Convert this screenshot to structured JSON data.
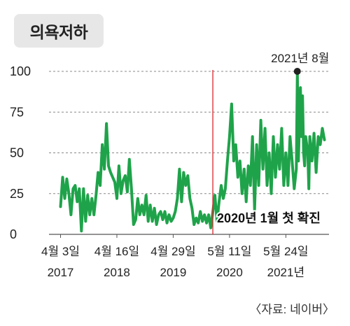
{
  "title": "의욕저하",
  "source": "〈자료: 네이버〉",
  "chart_data": {
    "type": "line",
    "title": "의욕저하",
    "x_start": "2017-04-03",
    "x_end": "2021-10-25",
    "ylim": [
      0,
      100
    ],
    "yticks": [
      "0",
      "25",
      "50",
      "75",
      "100"
    ],
    "grid": "horizontal dashed",
    "xticks": [
      {
        "date": "2017-04-03",
        "line1": "4월 3일",
        "line2": "2017"
      },
      {
        "date": "2018-04-16",
        "line1": "4월 16일",
        "line2": "2018"
      },
      {
        "date": "2019-04-29",
        "line1": "4월 29일",
        "line2": "2019"
      },
      {
        "date": "2020-05-11",
        "line1": "5월 11일",
        "line2": "2020"
      },
      {
        "date": "2021-05-24",
        "line1": "5월 24일",
        "line2": "2021년"
      }
    ],
    "event_line": {
      "date": "2020-01-20",
      "label": "2020년 1월 첫 확진",
      "color": "#d9262c"
    },
    "peak": {
      "date": "2021-08-09",
      "value": 100,
      "label": "2021년 8월"
    },
    "series_color": "#1fa34a",
    "series": [
      {
        "points": [
          [
            "2017-04-03",
            17
          ],
          [
            "2017-04-17",
            35
          ],
          [
            "2017-05-01",
            22
          ],
          [
            "2017-05-15",
            34
          ],
          [
            "2017-05-29",
            25
          ],
          [
            "2017-06-12",
            12
          ],
          [
            "2017-06-26",
            28
          ],
          [
            "2017-07-10",
            30
          ],
          [
            "2017-07-24",
            20
          ],
          [
            "2017-08-07",
            28
          ],
          [
            "2017-08-21",
            2
          ],
          [
            "2017-09-04",
            28
          ],
          [
            "2017-09-18",
            8
          ],
          [
            "2017-10-02",
            24
          ],
          [
            "2017-10-16",
            12
          ],
          [
            "2017-10-30",
            22
          ],
          [
            "2017-11-13",
            12
          ],
          [
            "2017-11-27",
            24
          ],
          [
            "2017-12-11",
            38
          ],
          [
            "2017-12-25",
            30
          ],
          [
            "2018-01-08",
            55
          ],
          [
            "2018-01-22",
            40
          ],
          [
            "2018-02-05",
            68
          ],
          [
            "2018-02-19",
            42
          ],
          [
            "2018-03-05",
            38
          ],
          [
            "2018-03-19",
            35
          ],
          [
            "2018-04-02",
            32
          ],
          [
            "2018-04-16",
            22
          ],
          [
            "2018-04-30",
            42
          ],
          [
            "2018-05-14",
            25
          ],
          [
            "2018-05-28",
            33
          ],
          [
            "2018-06-11",
            36
          ],
          [
            "2018-06-25",
            26
          ],
          [
            "2018-07-09",
            46
          ],
          [
            "2018-07-23",
            28
          ],
          [
            "2018-08-06",
            6
          ],
          [
            "2018-08-20",
            9
          ],
          [
            "2018-09-03",
            22
          ],
          [
            "2018-09-17",
            12
          ],
          [
            "2018-10-01",
            18
          ],
          [
            "2018-10-15",
            12
          ],
          [
            "2018-10-29",
            24
          ],
          [
            "2018-11-12",
            8
          ],
          [
            "2018-11-26",
            18
          ],
          [
            "2018-12-10",
            8
          ],
          [
            "2018-12-24",
            16
          ],
          [
            "2019-01-07",
            6
          ],
          [
            "2019-01-21",
            12
          ],
          [
            "2019-02-04",
            14
          ],
          [
            "2019-02-18",
            9
          ],
          [
            "2019-03-04",
            14
          ],
          [
            "2019-03-18",
            7
          ],
          [
            "2019-04-01",
            12
          ],
          [
            "2019-04-15",
            8
          ],
          [
            "2019-04-29",
            10
          ],
          [
            "2019-05-13",
            14
          ],
          [
            "2019-05-27",
            22
          ],
          [
            "2019-06-10",
            40
          ],
          [
            "2019-06-24",
            20
          ],
          [
            "2019-07-08",
            38
          ],
          [
            "2019-07-22",
            30
          ],
          [
            "2019-08-05",
            36
          ],
          [
            "2019-08-19",
            22
          ],
          [
            "2019-09-02",
            16
          ],
          [
            "2019-09-16",
            6
          ],
          [
            "2019-09-30",
            10
          ],
          [
            "2019-10-14",
            7
          ],
          [
            "2019-10-28",
            14
          ],
          [
            "2019-11-11",
            8
          ],
          [
            "2019-11-25",
            12
          ],
          [
            "2019-12-09",
            7
          ],
          [
            "2019-12-23",
            12
          ],
          [
            "2020-01-06",
            4
          ],
          [
            "2020-01-20",
            14
          ],
          [
            "2020-02-03",
            24
          ],
          [
            "2020-02-17",
            8
          ],
          [
            "2020-03-02",
            20
          ],
          [
            "2020-03-16",
            30
          ],
          [
            "2020-03-30",
            22
          ],
          [
            "2020-04-13",
            28
          ],
          [
            "2020-04-27",
            45
          ],
          [
            "2020-05-11",
            60
          ],
          [
            "2020-05-25",
            80
          ],
          [
            "2020-06-08",
            45
          ],
          [
            "2020-06-22",
            55
          ],
          [
            "2020-07-06",
            35
          ],
          [
            "2020-07-20",
            45
          ],
          [
            "2020-08-03",
            25
          ],
          [
            "2020-08-17",
            40
          ],
          [
            "2020-08-31",
            20
          ],
          [
            "2020-09-14",
            42
          ],
          [
            "2020-09-28",
            30
          ],
          [
            "2020-10-12",
            60
          ],
          [
            "2020-10-26",
            15
          ],
          [
            "2020-11-09",
            55
          ],
          [
            "2020-11-23",
            30
          ],
          [
            "2020-12-07",
            70
          ],
          [
            "2020-12-21",
            40
          ],
          [
            "2021-01-04",
            65
          ],
          [
            "2021-01-18",
            30
          ],
          [
            "2021-02-01",
            50
          ],
          [
            "2021-02-15",
            25
          ],
          [
            "2021-03-01",
            60
          ],
          [
            "2021-03-15",
            35
          ],
          [
            "2021-03-29",
            55
          ],
          [
            "2021-04-12",
            40
          ],
          [
            "2021-04-26",
            65
          ],
          [
            "2021-05-10",
            30
          ],
          [
            "2021-05-24",
            50
          ],
          [
            "2021-06-07",
            30
          ],
          [
            "2021-06-21",
            60
          ],
          [
            "2021-07-05",
            45
          ],
          [
            "2021-07-19",
            28
          ],
          [
            "2021-08-02",
            40
          ],
          [
            "2021-08-09",
            100
          ],
          [
            "2021-08-16",
            45
          ],
          [
            "2021-08-30",
            90
          ],
          [
            "2021-09-06",
            60
          ],
          [
            "2021-09-13",
            85
          ],
          [
            "2021-09-20",
            50
          ],
          [
            "2021-09-27",
            42
          ],
          [
            "2021-10-04",
            60
          ],
          [
            "2021-10-11",
            55
          ],
          [
            "2021-10-18",
            50
          ],
          [
            "2021-10-25",
            28
          ],
          [
            "2021-11-01",
            60
          ],
          [
            "2021-11-15",
            45
          ],
          [
            "2021-11-29",
            62
          ],
          [
            "2021-12-13",
            38
          ],
          [
            "2021-12-27",
            60
          ],
          [
            "2022-01-10",
            55
          ],
          [
            "2022-01-24",
            65
          ],
          [
            "2022-02-07",
            58
          ]
        ]
      }
    ]
  }
}
